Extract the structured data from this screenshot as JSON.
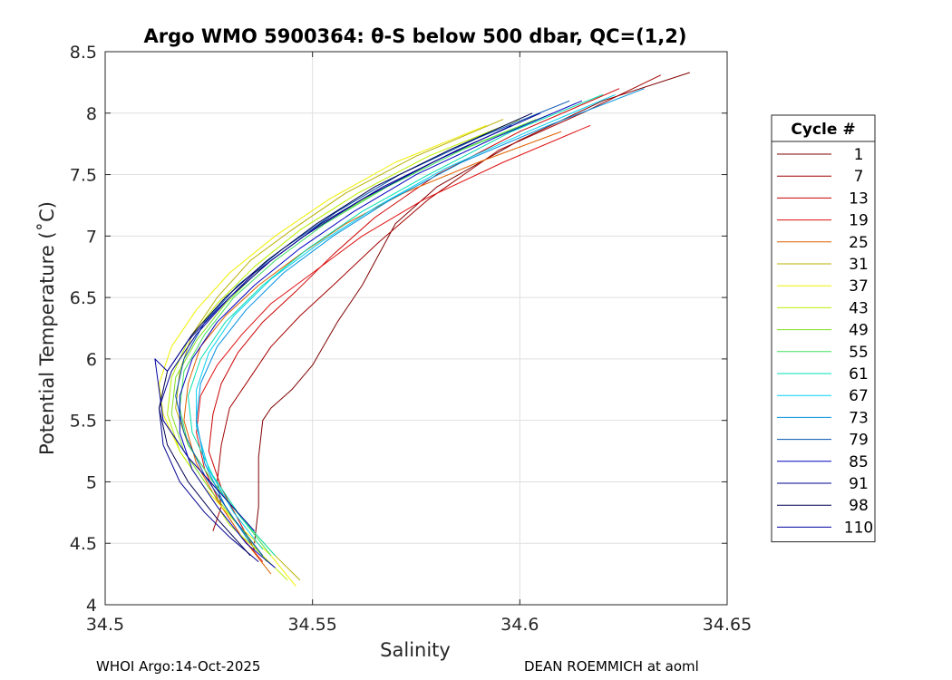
{
  "chart_data": {
    "type": "line",
    "title": "Argo WMO 5900364: θ-S below 500 dbar,  QC=(1,2)",
    "xlabel": "Salinity",
    "ylabel": "Potential Temperature (˚C)",
    "xlim": [
      34.5,
      34.65
    ],
    "ylim": [
      4,
      8.5
    ],
    "xticks": [
      34.5,
      34.55,
      34.6,
      34.65
    ],
    "xtick_labels": [
      "34.5",
      "34.55",
      "34.6",
      "34.65"
    ],
    "yticks": [
      4,
      4.5,
      5,
      5.5,
      6,
      6.5,
      7,
      7.5,
      8,
      8.5
    ],
    "ytick_labels": [
      "4",
      "4.5",
      "5",
      "5.5",
      "6",
      "6.5",
      "7",
      "7.5",
      "8",
      "8.5"
    ],
    "grid": true,
    "legend": {
      "title": "Cycle #",
      "placement": "right",
      "entries": [
        {
          "label": "1",
          "color": "#7f0000"
        },
        {
          "label": "7",
          "color": "#a30000"
        },
        {
          "label": "13",
          "color": "#cc0000"
        },
        {
          "label": "19",
          "color": "#e01010"
        },
        {
          "label": "25",
          "color": "#e06000"
        },
        {
          "label": "31",
          "color": "#b8b000"
        },
        {
          "label": "37",
          "color": "#f0f000"
        },
        {
          "label": "43",
          "color": "#b8f000"
        },
        {
          "label": "49",
          "color": "#80e020"
        },
        {
          "label": "55",
          "color": "#40e060"
        },
        {
          "label": "61",
          "color": "#00e0b0"
        },
        {
          "label": "67",
          "color": "#00d0f0"
        },
        {
          "label": "73",
          "color": "#0090e0"
        },
        {
          "label": "79",
          "color": "#0050b0"
        },
        {
          "label": "85",
          "color": "#0000c0"
        },
        {
          "label": "91",
          "color": "#000090"
        },
        {
          "label": "98",
          "color": "#000050"
        },
        {
          "label": "110",
          "color": "#0000a0"
        }
      ]
    },
    "series": [
      {
        "name": "1",
        "color": "#7f0000",
        "s": [
          34.641,
          34.62,
          34.6,
          34.58,
          34.57,
          34.562,
          34.556,
          34.55,
          34.545,
          34.54,
          34.538,
          34.537,
          34.537,
          34.536
        ],
        "t": [
          8.33,
          8.1,
          7.78,
          7.4,
          7.1,
          6.6,
          6.3,
          5.95,
          5.75,
          5.6,
          5.5,
          5.2,
          4.8,
          4.5
        ]
      },
      {
        "name": "7",
        "color": "#a30000",
        "s": [
          34.634,
          34.615,
          34.595,
          34.578,
          34.566,
          34.555,
          34.547,
          34.54,
          34.535,
          34.53,
          34.528,
          34.527,
          34.528,
          34.526
        ],
        "t": [
          8.31,
          8.0,
          7.7,
          7.3,
          6.95,
          6.6,
          6.35,
          6.1,
          5.85,
          5.6,
          5.3,
          5.0,
          4.8,
          4.6
        ]
      },
      {
        "name": "13",
        "color": "#cc0000",
        "s": [
          34.624,
          34.6,
          34.58,
          34.565,
          34.555,
          34.546,
          34.538,
          34.532,
          34.528,
          34.526,
          34.525,
          34.528,
          34.532,
          34.536
        ],
        "t": [
          8.2,
          7.85,
          7.5,
          7.15,
          6.85,
          6.55,
          6.3,
          6.05,
          5.8,
          5.55,
          5.25,
          4.95,
          4.7,
          4.45
        ]
      },
      {
        "name": "19",
        "color": "#e01010",
        "s": [
          34.617,
          34.596,
          34.577,
          34.562,
          34.55,
          34.54,
          34.533,
          34.527,
          34.523,
          34.522,
          34.524,
          34.528,
          34.533,
          34.538
        ],
        "t": [
          7.9,
          7.6,
          7.3,
          7.0,
          6.7,
          6.45,
          6.2,
          5.95,
          5.7,
          5.4,
          5.1,
          4.8,
          4.55,
          4.35
        ]
      },
      {
        "name": "25",
        "color": "#e06000",
        "s": [
          34.61,
          34.59,
          34.572,
          34.558,
          34.547,
          34.537,
          34.529,
          34.523,
          34.52,
          34.519,
          34.522,
          34.527,
          34.533,
          34.54
        ],
        "t": [
          7.85,
          7.6,
          7.35,
          7.1,
          6.85,
          6.6,
          6.35,
          6.1,
          5.8,
          5.5,
          5.15,
          4.85,
          4.55,
          4.25
        ]
      },
      {
        "name": "31",
        "color": "#b8b000",
        "s": [
          34.596,
          34.575,
          34.558,
          34.545,
          34.535,
          34.527,
          34.521,
          34.518,
          34.517,
          34.52,
          34.526,
          34.533,
          34.541,
          34.547
        ],
        "t": [
          7.95,
          7.65,
          7.35,
          7.05,
          6.8,
          6.5,
          6.2,
          5.9,
          5.6,
          5.3,
          5.0,
          4.7,
          4.4,
          4.2
        ]
      },
      {
        "name": "37",
        "color": "#f0f000",
        "s": [
          34.592,
          34.57,
          34.554,
          34.541,
          34.53,
          34.522,
          34.516,
          34.513,
          34.514,
          34.518,
          34.524,
          34.532,
          34.54,
          34.546
        ],
        "t": [
          7.9,
          7.6,
          7.3,
          7.0,
          6.7,
          6.4,
          6.1,
          5.8,
          5.55,
          5.25,
          4.95,
          4.65,
          4.4,
          4.15
        ]
      },
      {
        "name": "43",
        "color": "#b8f000",
        "s": [
          34.6,
          34.578,
          34.561,
          34.547,
          34.536,
          34.527,
          34.52,
          34.516,
          34.515,
          34.518,
          34.524,
          34.53,
          34.538,
          34.544
        ],
        "t": [
          7.95,
          7.65,
          7.35,
          7.05,
          6.75,
          6.45,
          6.15,
          5.85,
          5.55,
          5.25,
          4.95,
          4.65,
          4.4,
          4.2
        ]
      },
      {
        "name": "49",
        "color": "#80e020",
        "s": [
          34.604,
          34.582,
          34.565,
          34.55,
          34.538,
          34.529,
          34.522,
          34.517,
          34.516,
          34.519,
          34.525,
          34.532,
          34.539
        ],
        "t": [
          7.95,
          7.65,
          7.35,
          7.05,
          6.75,
          6.45,
          6.15,
          5.85,
          5.55,
          5.25,
          4.95,
          4.65,
          4.35
        ]
      },
      {
        "name": "55",
        "color": "#40e060",
        "s": [
          34.608,
          34.586,
          34.568,
          34.553,
          34.541,
          34.531,
          34.524,
          34.519,
          34.518,
          34.52,
          34.526,
          34.533,
          34.54
        ],
        "t": [
          8.0,
          7.7,
          7.4,
          7.1,
          6.8,
          6.5,
          6.2,
          5.9,
          5.6,
          5.3,
          5.0,
          4.7,
          4.4
        ]
      },
      {
        "name": "61",
        "color": "#00e0b0",
        "s": [
          34.62,
          34.598,
          34.578,
          34.562,
          34.549,
          34.538,
          34.529,
          34.523,
          34.52,
          34.521,
          34.526,
          34.533,
          34.541
        ],
        "t": [
          8.15,
          7.85,
          7.5,
          7.2,
          6.9,
          6.6,
          6.3,
          6.0,
          5.7,
          5.4,
          5.05,
          4.7,
          4.4
        ]
      },
      {
        "name": "67",
        "color": "#00d0f0",
        "s": [
          34.623,
          34.602,
          34.582,
          34.566,
          34.552,
          34.54,
          34.531,
          34.525,
          34.522,
          34.522,
          34.525,
          34.531,
          34.538
        ],
        "t": [
          8.15,
          7.85,
          7.55,
          7.25,
          6.95,
          6.65,
          6.35,
          6.05,
          5.75,
          5.45,
          5.1,
          4.75,
          4.45
        ]
      },
      {
        "name": "73",
        "color": "#0090e0",
        "s": [
          34.63,
          34.607,
          34.586,
          34.569,
          34.555,
          34.543,
          34.534,
          34.527,
          34.523,
          34.522,
          34.524,
          34.529,
          34.535
        ],
        "t": [
          8.2,
          7.9,
          7.6,
          7.3,
          7.0,
          6.7,
          6.4,
          6.1,
          5.8,
          5.5,
          5.15,
          4.8,
          4.5
        ]
      },
      {
        "name": "79",
        "color": "#0050b0",
        "s": [
          34.612,
          34.59,
          34.571,
          34.556,
          34.543,
          34.532,
          34.524,
          34.519,
          34.517,
          34.519,
          34.524,
          34.531,
          34.538
        ],
        "t": [
          8.1,
          7.8,
          7.5,
          7.2,
          6.9,
          6.6,
          6.3,
          6.0,
          5.7,
          5.4,
          5.05,
          4.7,
          4.4
        ]
      },
      {
        "name": "85",
        "color": "#0000c0",
        "s": [
          34.615,
          34.594,
          34.575,
          34.56,
          34.547,
          34.536,
          34.527,
          34.521,
          34.518,
          34.518,
          34.521,
          34.527,
          34.534,
          34.541
        ],
        "t": [
          8.1,
          7.8,
          7.5,
          7.2,
          6.9,
          6.6,
          6.3,
          6.0,
          5.7,
          5.4,
          5.1,
          4.8,
          4.5,
          4.3
        ]
      },
      {
        "name": "91",
        "color": "#000090",
        "s": [
          34.605,
          34.585,
          34.567,
          34.552,
          34.54,
          34.53,
          34.522,
          34.516,
          34.513,
          34.514,
          34.518,
          34.524,
          34.53,
          34.537
        ],
        "t": [
          8.0,
          7.7,
          7.4,
          7.1,
          6.8,
          6.5,
          6.2,
          5.9,
          5.6,
          5.3,
          5.0,
          4.75,
          4.55,
          4.35
        ]
      },
      {
        "name": "98",
        "color": "#000050",
        "s": [
          34.603,
          34.583,
          34.565,
          34.551,
          34.539,
          34.529,
          34.521,
          34.515,
          34.513,
          34.515,
          34.52,
          34.527,
          34.535
        ],
        "t": [
          8.0,
          7.7,
          7.4,
          7.1,
          6.8,
          6.5,
          6.2,
          5.9,
          5.6,
          5.3,
          5.0,
          4.7,
          4.4
        ]
      },
      {
        "name": "110",
        "color": "#0000a0",
        "s": [
          34.598,
          34.579,
          34.562,
          34.548,
          34.536,
          34.527,
          34.52,
          34.515,
          34.512,
          34.514,
          34.52,
          34.528,
          34.536
        ],
        "t": [
          7.9,
          7.6,
          7.3,
          7.0,
          6.7,
          6.4,
          6.15,
          5.9,
          6.0,
          5.5,
          5.2,
          4.9,
          4.6
        ]
      }
    ]
  },
  "footer": {
    "left": "WHOI Argo:14-Oct-2025",
    "right": "DEAN ROEMMICH at aoml"
  }
}
